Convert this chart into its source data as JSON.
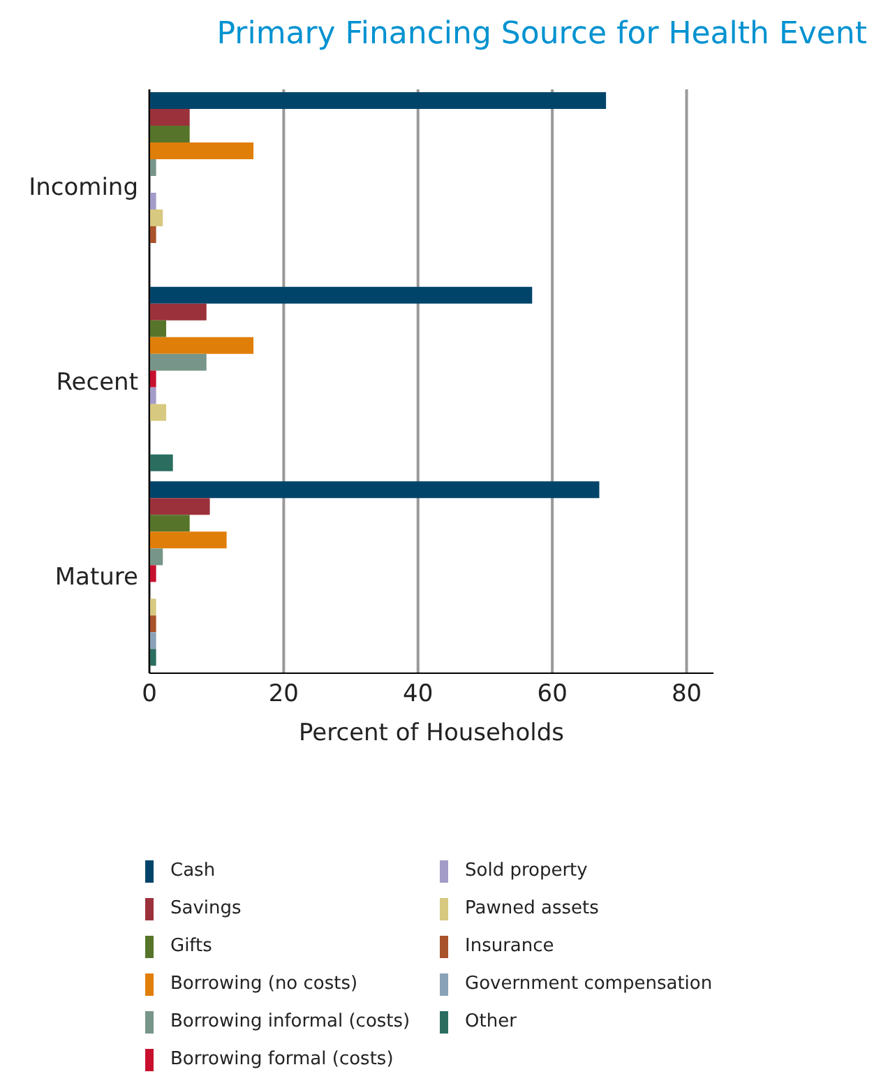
{
  "chart_data": {
    "type": "bar",
    "orientation": "horizontal",
    "title": "Primary Financing Source for Health Event",
    "xlabel": "Percent of Households",
    "categories": [
      "Incoming",
      "Recent",
      "Mature"
    ],
    "series": [
      {
        "name": "Cash",
        "color": "#00446a",
        "values": [
          68,
          57,
          67
        ]
      },
      {
        "name": "Savings",
        "color": "#9b313b",
        "values": [
          6,
          8.5,
          9
        ]
      },
      {
        "name": "Gifts",
        "color": "#56752a",
        "values": [
          6,
          2.5,
          6
        ]
      },
      {
        "name": "Borrowing (no costs)",
        "color": "#e07e0a",
        "values": [
          15.5,
          15.5,
          11.5
        ]
      },
      {
        "name": "Borrowing informal (costs)",
        "color": "#779588",
        "values": [
          1,
          8.5,
          2
        ]
      },
      {
        "name": "Borrowing formal (costs)",
        "color": "#c8102e",
        "values": [
          0,
          1,
          1
        ]
      },
      {
        "name": "Sold property",
        "color": "#a39bc8",
        "values": [
          1,
          1,
          0
        ]
      },
      {
        "name": "Pawned assets",
        "color": "#d7c97f",
        "values": [
          2,
          2.5,
          1
        ]
      },
      {
        "name": "Insurance",
        "color": "#a9532a",
        "values": [
          1,
          0,
          1
        ]
      },
      {
        "name": "Government compensation",
        "color": "#8aa2b8",
        "values": [
          0,
          0,
          1
        ]
      },
      {
        "name": "Other",
        "color": "#2b6e60",
        "values": [
          0,
          3.5,
          1
        ]
      }
    ],
    "xlim": [
      0,
      84
    ],
    "xticks": [
      0,
      20,
      40,
      60,
      80
    ],
    "grid": "x",
    "legend": "bottom"
  }
}
